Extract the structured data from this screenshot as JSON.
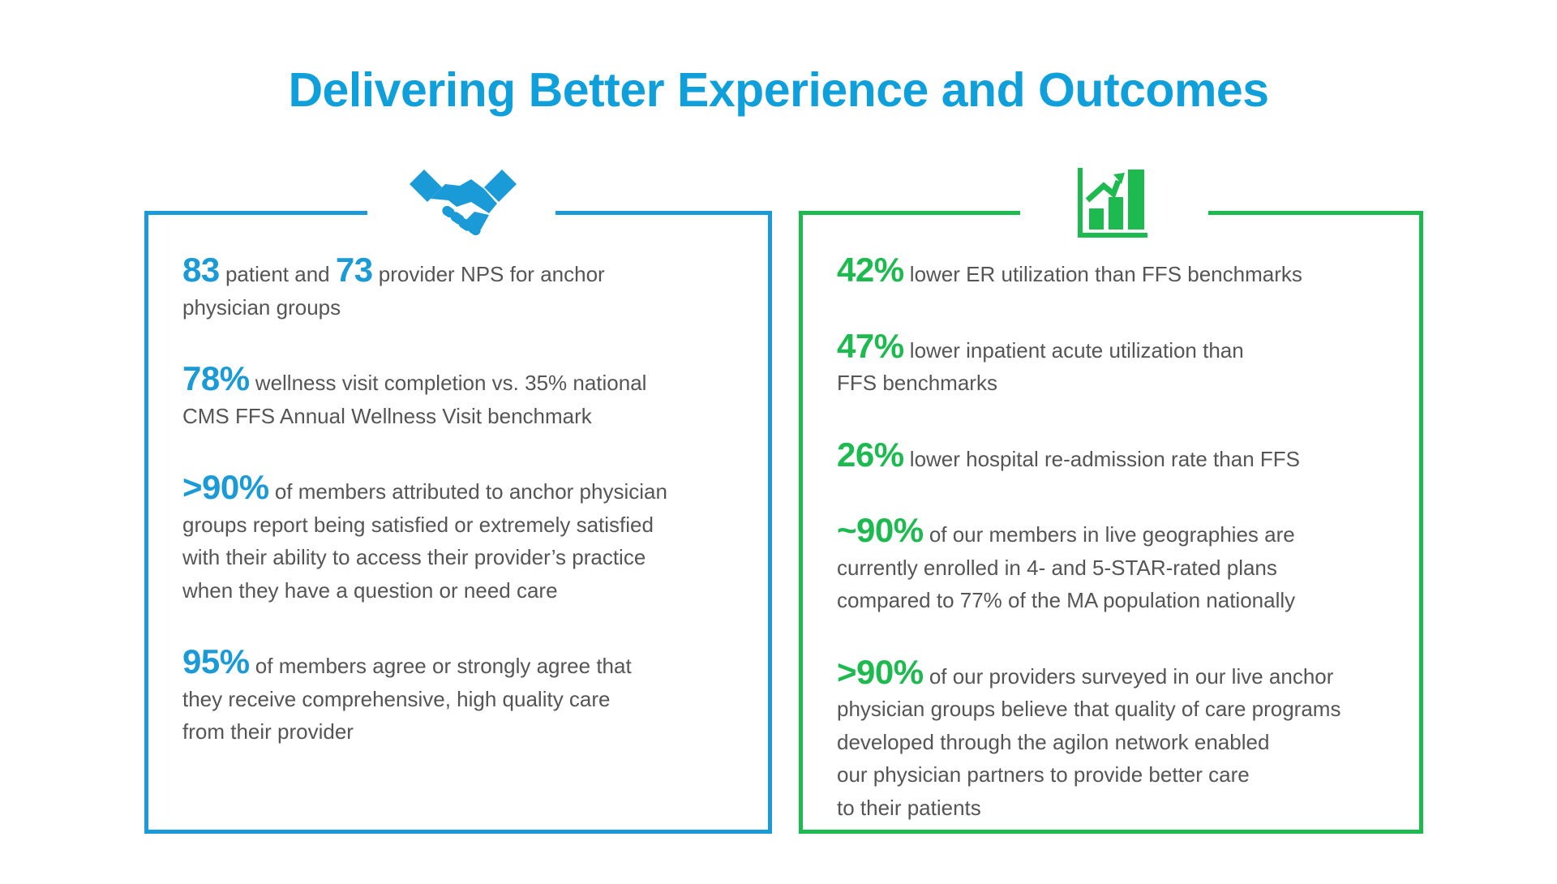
{
  "title": "Delivering Better Experience and Outcomes",
  "colors": {
    "title": "#0fa0dc",
    "left_accent": "#1a9ad6",
    "right_accent": "#1cba4f",
    "body_text": "#555555"
  },
  "left_panel": {
    "icon": "handshake-icon",
    "stats": [
      {
        "number": "83",
        "text": " patient and ",
        "number2": "73",
        "text2": " provider NPS for anchor",
        "lines": [
          "physician groups"
        ]
      },
      {
        "number": "78%",
        "text": " wellness visit completion vs. 35% national",
        "lines": [
          "CMS FFS Annual Wellness Visit benchmark"
        ]
      },
      {
        "number": ">90%",
        "text": " of members attributed to anchor physician",
        "lines": [
          "groups report being satisfied or extremely satisfied",
          "with their ability to access their provider’s practice",
          "when they have a question or need care"
        ]
      },
      {
        "number": "95%",
        "text": " of members agree or strongly agree that",
        "lines": [
          "they receive comprehensive, high quality care",
          "from their provider"
        ]
      }
    ]
  },
  "right_panel": {
    "icon": "bar-chart-growth-icon",
    "stats": [
      {
        "number": "42%",
        "text": " lower ER utilization than FFS benchmarks",
        "lines": []
      },
      {
        "number": "47%",
        "text": " lower inpatient acute utilization than",
        "lines": [
          "FFS benchmarks"
        ]
      },
      {
        "number": "26%",
        "text": " lower hospital re-admission rate than FFS",
        "lines": []
      },
      {
        "number": "~90%",
        "text": " of our members in live geographies are",
        "lines": [
          "currently enrolled in 4- and 5-STAR-rated plans",
          "compared to 77% of the MA population nationally"
        ]
      },
      {
        "number": ">90%",
        "text": " of our providers surveyed in our live anchor",
        "lines": [
          "physician groups believe that quality of care programs",
          "developed through the agilon network enabled",
          "our physician partners to provide better care",
          "to their patients"
        ]
      }
    ]
  }
}
